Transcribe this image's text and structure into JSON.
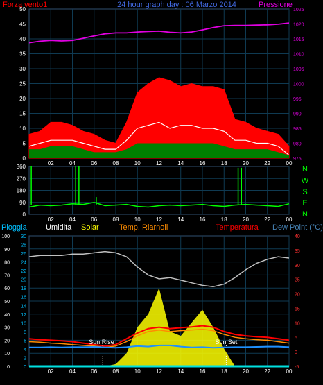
{
  "header": {
    "left_label": "Forza vento1",
    "title": "24 hour graph day : 06 Marzo 2014",
    "right_label": "Pressione"
  },
  "legend": {
    "pioggia": "Pioggia",
    "umidita": "Umidita",
    "solar": "Solar",
    "temp_riarnoli": "Temp. Riarnoli",
    "temperatura": "Temperatura",
    "dew_point": "Dew Point (°C)"
  },
  "annotations": {
    "sun_rise": "Sun Rise",
    "sun_set": "Sun Set"
  },
  "direction_labels": [
    "N",
    "W",
    "S",
    "E",
    "N"
  ],
  "colors": {
    "wind_gust": "#ff0000",
    "wind_avg": "#ffffff",
    "wind_base": "#008000",
    "pressure": "#e000e0",
    "direction": "#00ff00",
    "humidity": "#c0c0c0",
    "solar": "#ffff00",
    "temperature": "#ff0000",
    "temp_riarnoli": "#ff8c00",
    "dew_point": "#1e90ff",
    "rain": "#00e0e0",
    "grid": "#0f3a52"
  },
  "chart_data": [
    {
      "type": "area",
      "panel": "wind_pressure",
      "x_ticks": [
        "02",
        "04",
        "06",
        "08",
        "10",
        "12",
        "14",
        "16",
        "18",
        "20",
        "22",
        "00"
      ],
      "y_left": {
        "ylim": [
          0,
          50
        ],
        "ticks": [
          0,
          5,
          10,
          15,
          20,
          25,
          30,
          35,
          40,
          45,
          50
        ]
      },
      "y_right": {
        "ylim": [
          975,
          1025
        ],
        "ticks": [
          975,
          980,
          985,
          990,
          995,
          1000,
          1005,
          1010,
          1015,
          1020,
          1025
        ]
      },
      "x": [
        0,
        1,
        2,
        3,
        4,
        5,
        6,
        7,
        8,
        9,
        10,
        11,
        12,
        13,
        14,
        15,
        16,
        17,
        18,
        19,
        20,
        21,
        22,
        23,
        24
      ],
      "series": [
        {
          "key": "gust",
          "values": [
            8,
            9,
            12,
            12,
            11,
            9,
            8,
            6,
            5,
            12,
            22,
            25,
            27,
            26,
            24,
            25,
            24,
            24,
            23,
            13,
            12,
            10,
            9,
            8,
            4
          ]
        },
        {
          "key": "average",
          "values": [
            4,
            5,
            6,
            6,
            6,
            5,
            4,
            3,
            3,
            6,
            10,
            11,
            12,
            10,
            11,
            11,
            10,
            10,
            9,
            6,
            6,
            5,
            5,
            4,
            1
          ]
        },
        {
          "key": "base",
          "values": [
            3,
            3,
            4,
            4,
            4,
            3,
            2,
            2,
            2,
            3,
            5,
            5,
            5,
            5,
            5,
            5,
            5,
            5,
            4,
            3,
            3,
            3,
            3,
            2,
            1
          ]
        },
        {
          "key": "pressure",
          "values": [
            1013.7,
            1014.2,
            1014.5,
            1014.3,
            1014.5,
            1015.2,
            1016.0,
            1016.7,
            1017.0,
            1017.0,
            1017.3,
            1017.5,
            1017.6,
            1017.2,
            1017.0,
            1017.3,
            1018.0,
            1018.8,
            1019.4,
            1019.5,
            1019.5,
            1019.6,
            1019.7,
            1019.9,
            1020.3
          ]
        }
      ]
    },
    {
      "type": "line",
      "panel": "wind_direction",
      "x_ticks": [
        "02",
        "04",
        "06",
        "08",
        "10",
        "12",
        "14",
        "16",
        "18",
        "20",
        "22",
        "00"
      ],
      "y_ticks": [
        0,
        90,
        180,
        270,
        360
      ],
      "ylim": [
        0,
        360
      ],
      "x": [
        0,
        1,
        2,
        3,
        4,
        5,
        6,
        7,
        8,
        9,
        10,
        11,
        12,
        13,
        14,
        15,
        16,
        17,
        18,
        19,
        20,
        21,
        22,
        23,
        24
      ],
      "series": [
        {
          "key": "direction",
          "values": [
            55,
            70,
            65,
            70,
            80,
            75,
            90,
            65,
            70,
            75,
            60,
            55,
            65,
            70,
            65,
            70,
            75,
            65,
            60,
            70,
            75,
            70,
            65,
            60,
            80
          ]
        }
      ],
      "spikes": [
        {
          "x": 0.2,
          "value": 360
        },
        {
          "x": 4.3,
          "value": 360
        },
        {
          "x": 4.6,
          "value": 360
        },
        {
          "x": 6.2,
          "value": 130
        },
        {
          "x": 19.3,
          "value": 350
        },
        {
          "x": 19.6,
          "value": 350
        }
      ]
    },
    {
      "type": "line",
      "panel": "temp_humidity_solar",
      "x_ticks": [
        "02",
        "04",
        "06",
        "08",
        "10",
        "12",
        "14",
        "16",
        "18",
        "20",
        "22",
        "00"
      ],
      "y_left1": {
        "ylim": [
          0,
          100
        ],
        "ticks": [
          0,
          10,
          20,
          30,
          40,
          50,
          60,
          70,
          80,
          90,
          100
        ]
      },
      "y_left2": {
        "ylim": [
          0,
          30
        ],
        "ticks": [
          0,
          2,
          4,
          6,
          8,
          10,
          12,
          14,
          16,
          18,
          20,
          22,
          24,
          26,
          28,
          30
        ]
      },
      "y_right": {
        "ylim": [
          -5,
          40
        ],
        "ticks": [
          -5,
          0,
          5,
          10,
          15,
          20,
          25,
          30,
          35,
          40
        ]
      },
      "x": [
        0,
        1,
        2,
        3,
        4,
        5,
        6,
        7,
        8,
        9,
        10,
        11,
        12,
        13,
        14,
        15,
        16,
        17,
        18,
        19,
        20,
        21,
        22,
        23,
        24
      ],
      "series": [
        {
          "key": "humidity",
          "values": [
            84,
            85,
            85,
            85,
            86,
            86,
            87,
            88,
            87,
            84,
            76,
            70,
            67,
            68,
            66,
            64,
            62,
            61,
            63,
            68,
            74,
            79,
            82,
            84,
            83
          ]
        },
        {
          "key": "temperatura",
          "values": [
            4.5,
            4.2,
            4.0,
            3.8,
            3.5,
            3.0,
            2.5,
            2.0,
            2.5,
            4.5,
            6.5,
            8.0,
            8.5,
            8.0,
            8.3,
            8.6,
            9.0,
            8.5,
            7.0,
            6.0,
            5.5,
            5.2,
            5.0,
            4.5,
            4.0
          ]
        },
        {
          "key": "temp_riarnoli",
          "values": [
            3.5,
            3.3,
            3.0,
            2.8,
            2.5,
            2.2,
            2.0,
            1.5,
            2.0,
            3.5,
            5.5,
            7.0,
            7.5,
            7.0,
            7.3,
            7.5,
            7.8,
            7.3,
            6.0,
            5.0,
            4.5,
            4.2,
            4.0,
            3.5,
            3.0
          ]
        },
        {
          "key": "dew_point",
          "values": [
            1.5,
            1.5,
            1.6,
            1.5,
            1.6,
            1.6,
            1.7,
            1.5,
            1.4,
            1.6,
            2.0,
            1.8,
            2.2,
            2.2,
            1.8,
            1.5,
            1.6,
            1.4,
            1.5,
            1.6,
            1.6,
            1.7,
            1.8,
            1.8,
            1.6
          ]
        },
        {
          "key": "solar",
          "values": [
            0,
            0,
            0,
            0,
            0,
            0,
            0,
            0,
            0.5,
            3,
            9,
            12,
            18,
            8,
            7,
            10,
            13,
            9,
            4,
            0,
            0,
            0,
            0,
            0,
            0
          ]
        },
        {
          "key": "rain",
          "values": [
            0,
            0,
            0,
            0,
            0,
            0,
            0,
            0,
            0,
            0,
            0,
            0,
            0,
            0,
            0,
            0,
            0,
            0,
            0,
            0,
            0,
            0,
            0,
            0,
            0
          ]
        }
      ],
      "sun_rise_x": 6.8,
      "sun_set_x": 18.2
    }
  ]
}
